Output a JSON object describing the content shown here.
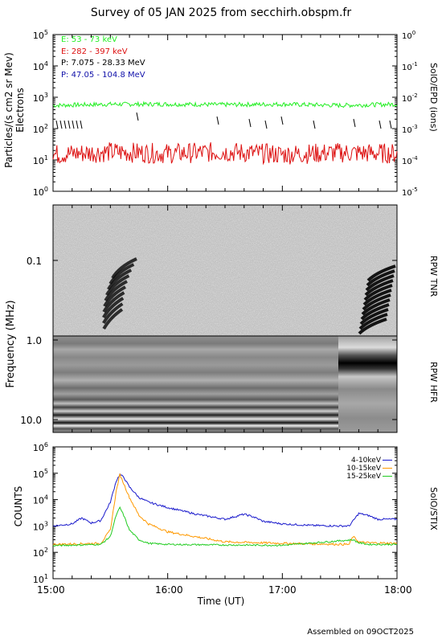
{
  "title": "Survey of 05 JAN 2025 from secchirh.obspm.fr",
  "footer": "Assembled on 09OCT2025",
  "colors": {
    "e_low": "#22ee22",
    "e_high": "#dd1111",
    "p_low": "#000000",
    "p_high": "#1111aa",
    "stix_4_10": "#1a1acc",
    "stix_10_15": "#ff9900",
    "stix_15_25": "#22cc22"
  },
  "panels": {
    "epd": {
      "ylabel_line1": "Particles/(s cm2 sr Mev)",
      "ylabel_line2": "Electrons",
      "side_label": "SolO/EPD (ions)",
      "legend": [
        "E: 53 - 73 keV",
        "E: 282 - 397 keV",
        "P: 7.075 - 28.33 MeV",
        "P: 47.05 - 104.8 MeV"
      ],
      "left_ticks": [
        "10^0",
        "10^1",
        "10^2",
        "10^3",
        "10^4",
        "10^5"
      ],
      "right_ticks": [
        "10^-5",
        "10^-4",
        "10^-3",
        "10^-2",
        "10^-1",
        "10^0"
      ]
    },
    "rpw": {
      "ylabel": "Frequency (MHz)",
      "tnr_label": "RPW TNR",
      "hfr_label": "RPW HFR",
      "ticks": [
        "0.1",
        "1.0",
        "10.0"
      ]
    },
    "stix": {
      "ylabel": "COUNTS",
      "side_label": "SolO/STIX",
      "legend": [
        "4-10keV",
        "10-15keV",
        "15-25keV"
      ],
      "ticks": [
        "10^1",
        "10^2",
        "10^3",
        "10^4",
        "10^5",
        "10^6"
      ]
    }
  },
  "xaxis": {
    "label": "Time (UT)",
    "ticks": [
      "15:00",
      "16:00",
      "17:00",
      "18:00"
    ]
  },
  "chart_data": [
    {
      "type": "line",
      "title": "SolO/EPD",
      "x_range": [
        "15:00",
        "18:00"
      ],
      "ylim": [
        1,
        100000
      ],
      "yscale": "log",
      "series": [
        {
          "name": "E: 53 - 73 keV",
          "x": [
            "15:00",
            "15:30",
            "16:00",
            "16:30",
            "17:00",
            "17:30",
            "18:00"
          ],
          "y": [
            550,
            600,
            600,
            580,
            600,
            550,
            600
          ]
        },
        {
          "name": "E: 282 - 397 keV",
          "x": [
            "15:00",
            "15:30",
            "16:00",
            "16:30",
            "17:00",
            "17:30",
            "18:00"
          ],
          "y": [
            15,
            18,
            16,
            18,
            15,
            17,
            16
          ]
        }
      ]
    },
    {
      "type": "heatmap",
      "title": "RPW TNR / HFR",
      "ylabel": "Frequency (MHz)",
      "x_range": [
        "15:00",
        "18:00"
      ],
      "ylim": [
        0.02,
        15
      ],
      "yscale": "log",
      "bursts": [
        {
          "start": "15:15",
          "end": "15:40"
        },
        {
          "start": "17:40",
          "end": "18:00"
        }
      ]
    },
    {
      "type": "line",
      "title": "SolO/STIX",
      "ylabel": "COUNTS",
      "x_range": [
        "15:00",
        "18:00"
      ],
      "ylim": [
        10,
        1000000
      ],
      "yscale": "log",
      "series": [
        {
          "name": "4-10keV",
          "x": [
            "15:00",
            "15:10",
            "15:15",
            "15:20",
            "15:25",
            "15:30",
            "15:33",
            "15:35",
            "15:37",
            "15:40",
            "15:45",
            "15:50",
            "16:00",
            "16:15",
            "16:30",
            "16:40",
            "16:45",
            "16:50",
            "17:00",
            "17:15",
            "17:30",
            "17:35",
            "17:40",
            "17:45",
            "17:50",
            "18:00"
          ],
          "y": [
            1000,
            1200,
            2000,
            1300,
            1600,
            8000,
            50000,
            90000,
            70000,
            30000,
            12000,
            8000,
            5000,
            2800,
            1800,
            2800,
            2200,
            1500,
            1200,
            1050,
            1000,
            1000,
            3000,
            2500,
            1800,
            1800
          ]
        },
        {
          "name": "10-15keV",
          "x": [
            "15:00",
            "15:25",
            "15:30",
            "15:33",
            "15:35",
            "15:37",
            "15:40",
            "15:45",
            "15:50",
            "16:00",
            "16:30",
            "17:00",
            "17:35",
            "17:37",
            "17:40",
            "17:45",
            "18:00"
          ],
          "y": [
            200,
            220,
            700,
            20000,
            90000,
            40000,
            12000,
            2500,
            1200,
            600,
            250,
            220,
            200,
            400,
            250,
            230,
            220
          ]
        },
        {
          "name": "15-25keV",
          "x": [
            "15:00",
            "15:25",
            "15:30",
            "15:33",
            "15:35",
            "15:37",
            "15:40",
            "15:45",
            "15:50",
            "16:00",
            "16:30",
            "17:00",
            "17:37",
            "17:40",
            "17:45",
            "18:00"
          ],
          "y": [
            180,
            200,
            400,
            2500,
            5000,
            2500,
            700,
            300,
            220,
            200,
            190,
            185,
            300,
            230,
            200,
            200
          ]
        }
      ]
    }
  ]
}
